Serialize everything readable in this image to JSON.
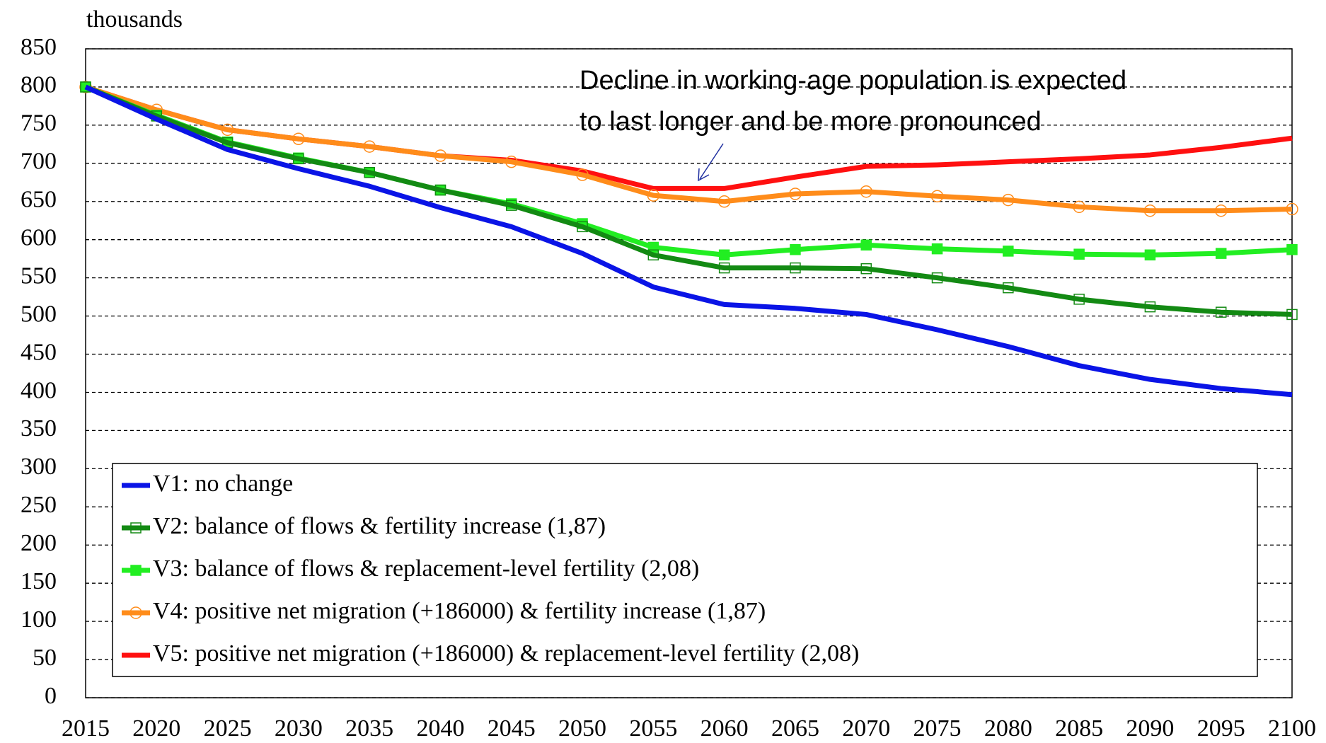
{
  "chart_data": {
    "type": "line",
    "y_label": "thousands",
    "annotation": [
      "Decline in working-age population is expected",
      "to last longer and be more pronounced"
    ],
    "x": [
      2015,
      2020,
      2025,
      2030,
      2035,
      2040,
      2045,
      2050,
      2055,
      2060,
      2065,
      2070,
      2075,
      2080,
      2085,
      2090,
      2095,
      2100
    ],
    "xlim": [
      2015,
      2100
    ],
    "xticks": [
      2015,
      2020,
      2025,
      2030,
      2035,
      2040,
      2045,
      2050,
      2055,
      2060,
      2065,
      2070,
      2075,
      2080,
      2085,
      2090,
      2095,
      2100
    ],
    "ylim": [
      0,
      850
    ],
    "yticks": [
      0,
      50,
      100,
      150,
      200,
      250,
      300,
      350,
      400,
      450,
      500,
      550,
      600,
      650,
      700,
      750,
      800,
      850
    ],
    "grid": true,
    "legend": "bottom-left",
    "series": [
      {
        "name": "V1: no change",
        "color": "#0a14e6",
        "marker": "none",
        "values": [
          800,
          758,
          718,
          693,
          670,
          642,
          617,
          582,
          538,
          515,
          510,
          502,
          482,
          460,
          435,
          417,
          405,
          397
        ]
      },
      {
        "name": "V2: balance of flows & fertility increase (1,87)",
        "color": "#138a13",
        "marker": "square-open",
        "values": [
          800,
          762,
          727,
          706,
          688,
          665,
          645,
          617,
          580,
          563,
          563,
          562,
          550,
          537,
          522,
          512,
          505,
          502
        ]
      },
      {
        "name": "V3: balance of flows & replacement-level fertility (2,08)",
        "color": "#22ee22",
        "marker": "square",
        "values": [
          800,
          763,
          728,
          707,
          688,
          665,
          647,
          621,
          590,
          580,
          587,
          593,
          588,
          585,
          581,
          580,
          582,
          587
        ]
      },
      {
        "name": "V4: positive net migration (+186000) & fertility increase (1,87)",
        "color": "#ff8c1a",
        "marker": "circle-open",
        "values": [
          800,
          770,
          744,
          732,
          722,
          710,
          702,
          685,
          658,
          650,
          660,
          663,
          657,
          652,
          643,
          638,
          638,
          640
        ]
      },
      {
        "name": "V5: positive net migration (+186000) & replacement-level fertility (2,08)",
        "color": "#ff1010",
        "marker": "none",
        "values": [
          800,
          770,
          744,
          732,
          722,
          710,
          704,
          690,
          667,
          667,
          682,
          696,
          698,
          702,
          706,
          711,
          721,
          733
        ]
      }
    ]
  }
}
